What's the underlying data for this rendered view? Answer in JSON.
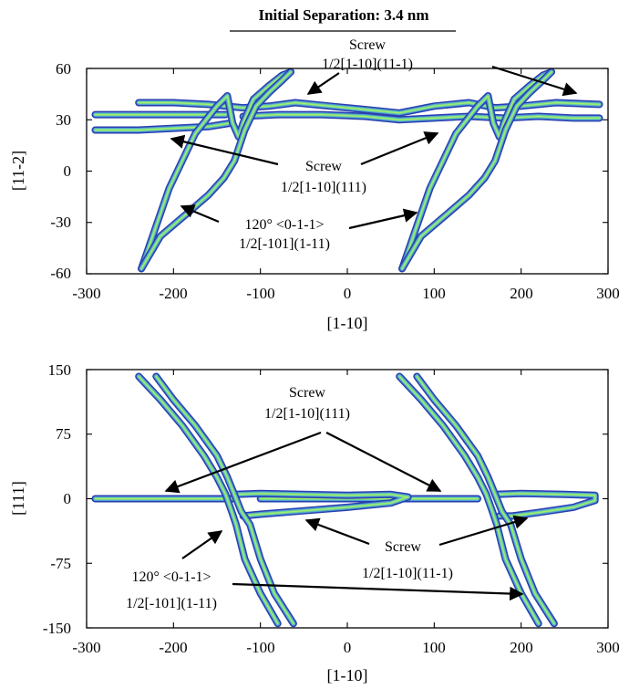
{
  "figure": {
    "title": "Initial Separation: 3.4 nm",
    "colors": {
      "outer": "#2a3fb0",
      "mid": "#4f9fd6",
      "inner": "#6fd39a",
      "core": "#a8ee6a"
    }
  },
  "chart_data": [
    {
      "type": "line",
      "title": "Initial Separation: 3.4 nm",
      "xlabel": "[1-10]",
      "ylabel": "[11-2]",
      "xlim": [
        -300,
        300
      ],
      "ylim": [
        -60,
        60
      ],
      "xticks": [
        "-300",
        "-200",
        "-100",
        "0",
        "100",
        "200",
        "300"
      ],
      "yticks": [
        "60",
        "30",
        "0",
        "-30",
        "-60"
      ],
      "grid": false,
      "series": [
        {
          "label_lines": [
            "Screw",
            "1/2[1-10](11-1)"
          ],
          "paths": [
            [
              [
                -240,
                40
              ],
              [
                -200,
                40
              ],
              [
                -160,
                39
              ],
              [
                -120,
                37
              ],
              [
                -90,
                38
              ],
              [
                -60,
                40
              ],
              [
                -20,
                38
              ],
              [
                20,
                36
              ],
              [
                60,
                34
              ],
              [
                100,
                38
              ],
              [
                140,
                40
              ],
              [
                170,
                37
              ],
              [
                200,
                38
              ],
              [
                240,
                40
              ],
              [
                290,
                39
              ]
            ]
          ]
        },
        {
          "label_lines": [
            "Screw",
            "1/2[1-10](111)"
          ],
          "paths": [
            [
              [
                -290,
                24
              ],
              [
                -240,
                24
              ],
              [
                -200,
                25
              ],
              [
                -160,
                26
              ],
              [
                -135,
                28
              ]
            ],
            [
              [
                -290,
                33
              ],
              [
                -240,
                33
              ],
              [
                -200,
                33
              ],
              [
                -160,
                33
              ],
              [
                -140,
                33
              ]
            ],
            [
              [
                -120,
                32
              ],
              [
                -80,
                33
              ],
              [
                -30,
                33
              ],
              [
                20,
                32
              ],
              [
                60,
                30
              ],
              [
                100,
                31
              ],
              [
                140,
                32
              ],
              [
                180,
                31
              ],
              [
                220,
                32
              ],
              [
                260,
                31
              ],
              [
                290,
                31
              ]
            ]
          ]
        },
        {
          "label_lines": [
            "120° <0-1-1>",
            "1/2[-101](1-11)"
          ],
          "paths": [
            [
              [
                -237,
                -57
              ],
              [
                -205,
                -10
              ],
              [
                -175,
                22
              ],
              [
                -150,
                38
              ],
              [
                -138,
                44
              ],
              [
                -132,
                28
              ],
              [
                -125,
                20
              ],
              [
                -120,
                28
              ],
              [
                -108,
                42
              ],
              [
                -90,
                50
              ],
              [
                -75,
                56
              ],
              [
                -65,
                58
              ]
            ],
            [
              [
                -237,
                -57
              ],
              [
                -215,
                -38
              ],
              [
                -185,
                -25
              ],
              [
                -160,
                -14
              ],
              [
                -142,
                -4
              ],
              [
                -130,
                6
              ],
              [
                -118,
                24
              ],
              [
                -105,
                38
              ],
              [
                -90,
                46
              ],
              [
                -75,
                53
              ],
              [
                -65,
                58
              ]
            ],
            [
              [
                63,
                -57
              ],
              [
                95,
                -10
              ],
              [
                125,
                22
              ],
              [
                150,
                38
              ],
              [
                162,
                44
              ],
              [
                168,
                28
              ],
              [
                175,
                20
              ],
              [
                180,
                28
              ],
              [
                192,
                42
              ],
              [
                210,
                50
              ],
              [
                225,
                56
              ],
              [
                235,
                58
              ]
            ],
            [
              [
                63,
                -57
              ],
              [
                85,
                -38
              ],
              [
                115,
                -25
              ],
              [
                140,
                -14
              ],
              [
                158,
                -4
              ],
              [
                170,
                6
              ],
              [
                182,
                24
              ],
              [
                195,
                38
              ],
              [
                210,
                46
              ],
              [
                225,
                53
              ],
              [
                235,
                58
              ]
            ]
          ]
        }
      ]
    },
    {
      "type": "line",
      "xlabel": "[1-10]",
      "ylabel": "[111]",
      "xlim": [
        -300,
        300
      ],
      "ylim": [
        -150,
        150
      ],
      "xticks": [
        "-300",
        "-200",
        "-100",
        "0",
        "100",
        "200",
        "300"
      ],
      "yticks": [
        "150",
        "75",
        "0",
        "-75",
        "-150"
      ],
      "grid": false,
      "series": [
        {
          "label_lines": [
            "Screw",
            "1/2[1-10](111)"
          ],
          "paths": [
            [
              [
                -290,
                0
              ],
              [
                -200,
                0
              ],
              [
                -140,
                0
              ],
              [
                -130,
                0
              ]
            ],
            [
              [
                -100,
                0
              ],
              [
                -20,
                0
              ],
              [
                60,
                0
              ],
              [
                150,
                0
              ]
            ]
          ]
        },
        {
          "label_lines": [
            "Screw",
            "1/2[1-10](11-1)"
          ],
          "paths": [
            [
              [
                -130,
                5
              ],
              [
                -100,
                6
              ],
              [
                -50,
                5
              ],
              [
                0,
                4
              ],
              [
                50,
                5
              ],
              [
                70,
                2
              ],
              [
                50,
                -5
              ],
              [
                0,
                -10
              ],
              [
                -50,
                -14
              ],
              [
                -100,
                -18
              ],
              [
                -120,
                -20
              ]
            ],
            [
              [
                170,
                5
              ],
              [
                200,
                6
              ],
              [
                250,
                5
              ],
              [
                285,
                4
              ],
              [
                285,
                -2
              ],
              [
                260,
                -10
              ],
              [
                220,
                -16
              ],
              [
                190,
                -20
              ],
              [
                175,
                -20
              ]
            ]
          ]
        },
        {
          "label_lines": [
            "120° <0-1-1>",
            "1/2[-101](1-11)"
          ],
          "paths": [
            [
              [
                -240,
                142
              ],
              [
                -215,
                115
              ],
              [
                -190,
                85
              ],
              [
                -165,
                50
              ],
              [
                -150,
                25
              ],
              [
                -140,
                5
              ],
              [
                -133,
                -15
              ],
              [
                -128,
                -30
              ],
              [
                -118,
                -70
              ],
              [
                -100,
                -110
              ],
              [
                -80,
                -145
              ]
            ],
            [
              [
                -220,
                142
              ],
              [
                -200,
                115
              ],
              [
                -175,
                85
              ],
              [
                -150,
                50
              ],
              [
                -138,
                25
              ],
              [
                -130,
                5
              ],
              [
                -122,
                -15
              ],
              [
                -112,
                -30
              ],
              [
                -100,
                -70
              ],
              [
                -84,
                -110
              ],
              [
                -62,
                -145
              ]
            ],
            [
              [
                60,
                142
              ],
              [
                85,
                115
              ],
              [
                110,
                85
              ],
              [
                135,
                50
              ],
              [
                150,
                25
              ],
              [
                160,
                5
              ],
              [
                167,
                -15
              ],
              [
                172,
                -30
              ],
              [
                182,
                -70
              ],
              [
                200,
                -110
              ],
              [
                220,
                -145
              ]
            ],
            [
              [
                80,
                142
              ],
              [
                100,
                115
              ],
              [
                125,
                85
              ],
              [
                150,
                50
              ],
              [
                162,
                25
              ],
              [
                170,
                5
              ],
              [
                178,
                -15
              ],
              [
                188,
                -30
              ],
              [
                200,
                -70
              ],
              [
                216,
                -110
              ],
              [
                238,
                -145
              ]
            ]
          ]
        }
      ]
    }
  ]
}
